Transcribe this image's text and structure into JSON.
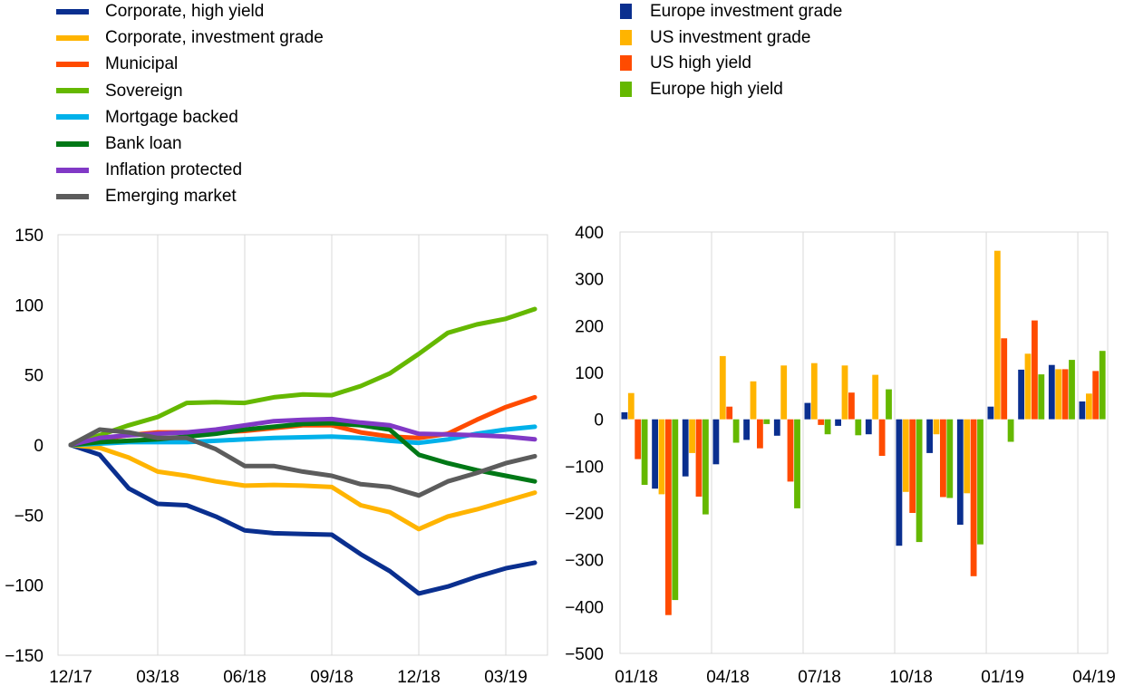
{
  "chart_data": [
    {
      "type": "line",
      "x_ticks": [
        "12/17",
        "03/18",
        "06/18",
        "09/18",
        "12/18",
        "03/19"
      ],
      "ylim": [
        -150,
        150
      ],
      "y_ticks": [
        "150",
        "100",
        "50",
        "0",
        "−50",
        "−100",
        "−150"
      ],
      "grid": "vertical",
      "legend_position": "top-left",
      "series": [
        {
          "name": "Corporate, high yield",
          "color": "#0a2f8f",
          "values": [
            0,
            -7,
            -31,
            -42,
            -43,
            -51,
            -61,
            -63,
            -63.5,
            -64,
            -78,
            -90,
            -106,
            -101,
            -94,
            -88,
            -84
          ]
        },
        {
          "name": "Corporate, investment grade",
          "color": "#ffb400",
          "values": [
            0,
            -2,
            -9,
            -19,
            -22,
            -26,
            -29,
            -28.5,
            -29,
            -30,
            -43,
            -48,
            -60,
            -51,
            -46,
            -40,
            -34
          ]
        },
        {
          "name": "Municipal",
          "color": "#ff4b00",
          "values": [
            0,
            4,
            7,
            9,
            9,
            9,
            10,
            12,
            14,
            14,
            9,
            6,
            5,
            8,
            18,
            27,
            34
          ]
        },
        {
          "name": "Sovereign",
          "color": "#65b800",
          "values": [
            0,
            7,
            14,
            20,
            30,
            30.5,
            30,
            34,
            36,
            35.5,
            42,
            51,
            65,
            80,
            86,
            90,
            97
          ]
        },
        {
          "name": "Mortgage backed",
          "color": "#00b1ea",
          "values": [
            0,
            1,
            2,
            2,
            2,
            3,
            4,
            5,
            5.5,
            6,
            5,
            3,
            1.5,
            4,
            8,
            11,
            13
          ]
        },
        {
          "name": "Bank loan",
          "color": "#007816",
          "values": [
            0,
            2,
            3,
            4,
            6,
            8,
            11,
            13,
            15,
            15.5,
            14,
            11,
            -7,
            -13,
            -18,
            -22,
            -26
          ]
        },
        {
          "name": "Inflation protected",
          "color": "#8139c6",
          "values": [
            0,
            5,
            7,
            8,
            9,
            11,
            14,
            17,
            18,
            18.5,
            16,
            14,
            8,
            7.5,
            7,
            6,
            4
          ]
        },
        {
          "name": "Emerging market",
          "color": "#5c5c5c",
          "values": [
            0,
            11,
            9,
            5,
            5,
            -3,
            -15,
            -15,
            -19,
            -22,
            -28,
            -30,
            -36,
            -26,
            -20,
            -13,
            -8
          ]
        }
      ]
    },
    {
      "type": "bar",
      "categories": [
        "01/18",
        "02/18",
        "03/18",
        "04/18",
        "05/18",
        "06/18",
        "07/18",
        "08/18",
        "09/18",
        "10/18",
        "11/18",
        "12/18",
        "01/19",
        "02/19",
        "03/19",
        "04/19"
      ],
      "x_ticks": [
        "01/18",
        "04/18",
        "07/18",
        "10/18",
        "01/19",
        "04/19"
      ],
      "ylim": [
        -500,
        400
      ],
      "y_ticks": [
        "400",
        "300",
        "200",
        "100",
        "0",
        "−100",
        "−200",
        "−300",
        "−400",
        "−500"
      ],
      "grid": "vertical",
      "legend_position": "top-left",
      "series": [
        {
          "name": "Europe investment grade",
          "color": "#0a2f8f",
          "values": [
            15,
            -148,
            -122,
            -96,
            -44,
            -35,
            35,
            -14,
            -32,
            -270,
            -72,
            -225,
            27,
            106,
            116,
            38
          ]
        },
        {
          "name": "US investment grade",
          "color": "#ffb400",
          "values": [
            56,
            -160,
            -72,
            135,
            81,
            115,
            120,
            115,
            95,
            -155,
            -32,
            -158,
            360,
            140,
            107,
            55
          ]
        },
        {
          "name": "US high yield",
          "color": "#ff4b00",
          "values": [
            -85,
            -418,
            -165,
            27,
            -62,
            -133,
            -12,
            57,
            -78,
            -200,
            -166,
            -335,
            173,
            211,
            107,
            103
          ]
        },
        {
          "name": "Europe high yield",
          "color": "#65b800",
          "values": [
            -140,
            -386,
            -203,
            -50,
            -10,
            -190,
            -32,
            -34,
            64,
            -262,
            -168,
            -267,
            -48,
            96,
            127,
            146
          ]
        }
      ]
    }
  ]
}
